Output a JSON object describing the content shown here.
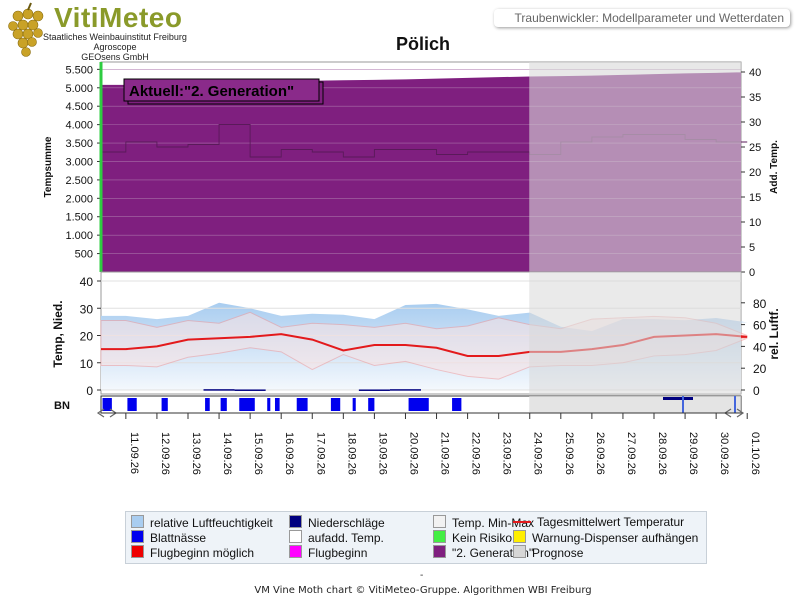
{
  "logo": {
    "title": "VitiMeteo",
    "lines": [
      "Staatliches Weinbauinstitut Freiburg",
      "Agroscope",
      "GEOsens GmbH"
    ]
  },
  "header": {
    "subtitle": "Traubenwickler: Modellparameter und Wetterdaten"
  },
  "title": "Pölich",
  "current_label": "Aktuell:\"2. Generation\"",
  "footer": "VM Vine Moth chart © VitiMeteo-Gruppe. Algorithmen WBI Freiburg",
  "footer_dash": "-",
  "colors": {
    "generation": "#7f1f7f",
    "prognosis": "#d6d6d6",
    "humidity": "#a9cdf0",
    "daily_mean": "#e31a1c",
    "min_max_band": "#f9c5c5",
    "leaf_wetness": "#0000ee",
    "flight_start_possible": "#ee0000"
  },
  "chart_data": [
    {
      "type": "area",
      "panel": "top",
      "title": "Pölich",
      "ylabel": "Tempsumme",
      "y2label": "Add. Temp.",
      "ylim": [
        0,
        5700
      ],
      "y2lim": [
        0,
        42
      ],
      "yticks": [
        "5.500",
        "5.000",
        "4.500",
        "4.000",
        "3.500",
        "3.000",
        "2.500",
        "2.000",
        "1.500",
        "1.000",
        "500"
      ],
      "y2ticks": [
        "40",
        "35",
        "30",
        "25",
        "20",
        "15",
        "10",
        "5",
        "0"
      ],
      "x": [
        "11.09.26",
        "12.09.26",
        "13.09.26",
        "14.09.26",
        "15.09.26",
        "16.09.26",
        "17.09.26",
        "18.09.26",
        "19.09.26",
        "20.09.26",
        "21.09.26",
        "22.09.26",
        "23.09.26",
        "24.09.26",
        "25.09.26",
        "26.09.26",
        "27.09.26",
        "28.09.26",
        "29.09.26",
        "30.09.26",
        "01.10.26"
      ],
      "temperature_sum": [
        5080,
        5095,
        5110,
        5130,
        5150,
        5170,
        5190,
        5205,
        5215,
        5230,
        5250,
        5270,
        5290,
        5305,
        5315,
        5330,
        5350,
        5370,
        5390,
        5405,
        5425
      ],
      "added_temperature": [
        24.0,
        26.0,
        25.0,
        25.5,
        29.5,
        23.0,
        24.5,
        24.0,
        23.0,
        24.5,
        24.5,
        23.5,
        24.0,
        24.0,
        23.5,
        26.0,
        27.0,
        27.5,
        27.5,
        26.5,
        26.0
      ],
      "series_legend": [
        "\"2. Generation\"",
        "aufadd. Temp.",
        "Prognose"
      ],
      "forecast_from": "24.09.26"
    },
    {
      "type": "line",
      "panel": "middle",
      "ylabel": "Temp, Nied.",
      "y2label": "rel. Luftf.",
      "ylim": [
        0,
        40
      ],
      "y2lim": [
        0,
        100
      ],
      "yticks": [
        "40",
        "30",
        "20",
        "10",
        "0"
      ],
      "y2ticks": [
        "80",
        "60",
        "40",
        "20",
        "0"
      ],
      "x": [
        "11.09.26",
        "12.09.26",
        "13.09.26",
        "14.09.26",
        "15.09.26",
        "16.09.26",
        "17.09.26",
        "18.09.26",
        "19.09.26",
        "20.09.26",
        "21.09.26",
        "22.09.26",
        "23.09.26",
        "24.09.26",
        "25.09.26",
        "26.09.26",
        "27.09.26",
        "28.09.26",
        "29.09.26",
        "30.09.26",
        "01.10.26"
      ],
      "series": [
        {
          "name": "relative Luftfeuchtigkeit",
          "values": [
            68,
            65,
            68,
            80,
            75,
            68,
            70,
            69,
            65,
            78,
            79,
            74,
            68,
            71,
            58,
            54,
            65,
            65,
            64,
            66,
            62
          ]
        },
        {
          "name": "Tagesmittelwert Temperatur",
          "values": [
            15.0,
            16.0,
            18.5,
            19.0,
            19.5,
            20.5,
            18.5,
            14.5,
            16.5,
            16.5,
            15.5,
            12.5,
            12.5,
            14.0,
            14.0,
            15.0,
            16.5,
            19.5,
            20.0,
            20.5,
            19.5
          ]
        },
        {
          "name": "Temp. Min-Max",
          "min": [
            9.0,
            8.5,
            12.0,
            13.5,
            15.5,
            14.0,
            7.5,
            13.0,
            9.0,
            10.5,
            7.5,
            5.0,
            4.0,
            8.5,
            9.0,
            9.0,
            10.0,
            12.5,
            13.0,
            14.5,
            19.0
          ],
          "max": [
            25.5,
            23.0,
            25.5,
            24.5,
            28.5,
            23.0,
            24.5,
            24.0,
            23.0,
            24.5,
            22.5,
            23.5,
            26.5,
            24.0,
            22.5,
            26.0,
            26.5,
            27.0,
            26.5,
            24.5,
            20.0
          ]
        },
        {
          "name": "Niederschläge",
          "values": [
            0,
            0,
            0,
            0.3,
            0.2,
            0,
            0,
            0,
            0.2,
            0.3,
            0,
            0,
            0,
            0,
            0,
            0,
            0,
            0,
            0,
            0,
            0
          ]
        }
      ],
      "forecast_from": "24.09.26"
    },
    {
      "type": "bar",
      "panel": "bottom",
      "ylabel": "BN",
      "series": [
        {
          "name": "Blattnässe",
          "intervals_day": [
            [
              0.05,
              0.35
            ],
            [
              0.85,
              1.15
            ],
            [
              1.95,
              2.15
            ],
            [
              3.35,
              3.5
            ],
            [
              3.85,
              4.05
            ],
            [
              4.45,
              4.95
            ],
            [
              5.35,
              5.45
            ],
            [
              5.6,
              5.75
            ],
            [
              6.3,
              6.65
            ],
            [
              7.4,
              7.7
            ],
            [
              8.1,
              8.2
            ],
            [
              8.6,
              8.8
            ],
            [
              9.9,
              10.55
            ],
            [
              11.3,
              11.6
            ]
          ]
        }
      ],
      "forecast_from": "24.09.26"
    }
  ],
  "legend": [
    {
      "label": "relative Luftfeuchtigkeit",
      "kind": "swatch",
      "color": "#a9cdf0"
    },
    {
      "label": "Niederschläge",
      "kind": "swatch",
      "color": "#000080"
    },
    {
      "label": "Temp. Min-Max",
      "kind": "swatch",
      "color": "#f2f2f2"
    },
    {
      "label": "Tagesmittelwert Temperatur",
      "kind": "line",
      "color": "#e31a1c"
    },
    {
      "label": "Blattnässe",
      "kind": "swatch",
      "color": "#0000ee"
    },
    {
      "label": "aufadd. Temp.",
      "kind": "swatch",
      "color": "#ffffff"
    },
    {
      "label": "Kein Risiko",
      "kind": "swatch",
      "color": "#44ee44"
    },
    {
      "label": "Warnung-Dispenser aufhängen",
      "kind": "swatch",
      "color": "#ffee00"
    },
    {
      "label": "Flugbeginn möglich",
      "kind": "swatch",
      "color": "#ee0000"
    },
    {
      "label": "Flugbeginn",
      "kind": "swatch",
      "color": "#ff00ff"
    },
    {
      "label": "\"2. Generation\"",
      "kind": "swatch",
      "color": "#7f1f7f"
    },
    {
      "label": "Prognose",
      "kind": "swatch",
      "color": "#d6d6d6"
    }
  ]
}
